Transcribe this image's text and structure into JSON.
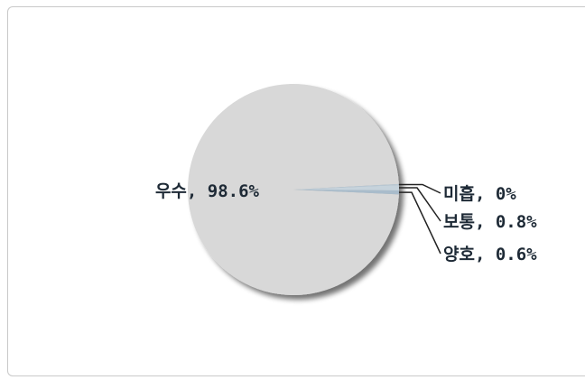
{
  "chart_data": {
    "type": "pie",
    "title": "",
    "slices": [
      {
        "name": "우수",
        "value": 98.6,
        "label": "우수, 98.6%",
        "color": "#d8d8d8"
      },
      {
        "name": "미흡",
        "value": 0,
        "label": "미흡, 0%",
        "color": "#b8c8d4"
      },
      {
        "name": "보통",
        "value": 0.8,
        "label": "보통, 0.8%",
        "color": "#c6d3dc"
      },
      {
        "name": "양호",
        "value": 0.6,
        "label": "양호, 0.6%",
        "color": "#a9bccb"
      }
    ]
  }
}
